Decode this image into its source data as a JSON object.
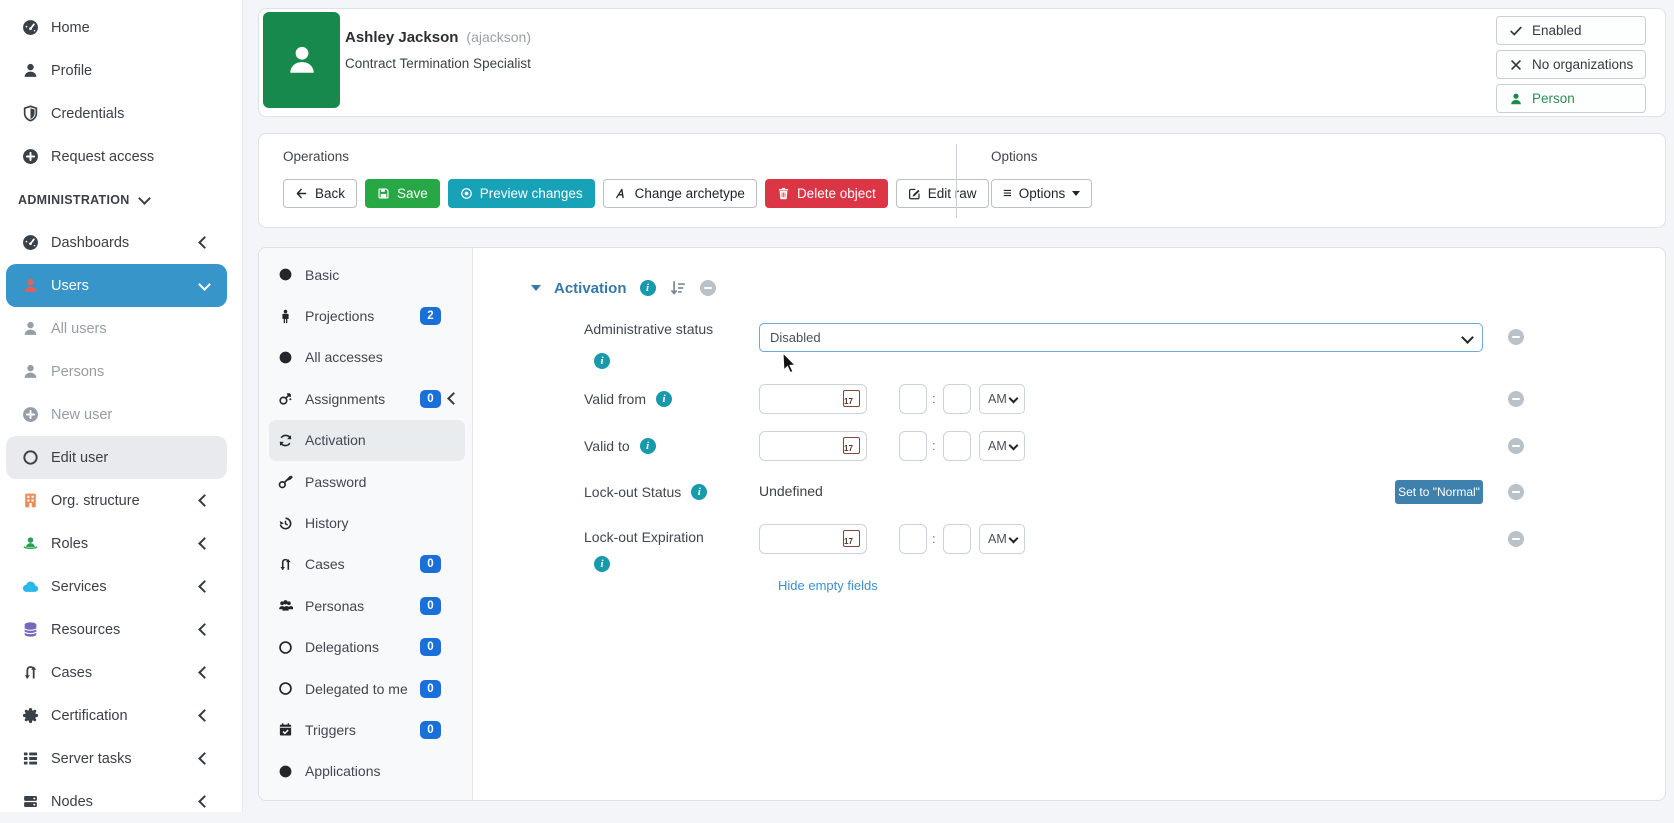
{
  "colors": {
    "sidebar_active_blue": "#3795c9",
    "nav_badge_blue": "#1b6fd8",
    "save_green": "#28a745",
    "preview_teal": "#17a2b8",
    "delete_red": "#dc3545",
    "set_normal_blue": "#3f81ad",
    "section_title_blue": "#3678a8",
    "info_icon_teal": "#1899ac",
    "avatar_green": "#18894d",
    "users_icon_red": "#e0605e"
  },
  "sidebar": {
    "items": [
      {
        "label": "Home",
        "icon": "gauge"
      },
      {
        "label": "Profile",
        "icon": "user"
      },
      {
        "label": "Credentials",
        "icon": "shield"
      },
      {
        "label": "Request access",
        "icon": "plus-circle"
      },
      {
        "type": "section",
        "label": "ADMINISTRATION",
        "chevron": "down"
      },
      {
        "label": "Dashboards",
        "icon": "gauge",
        "chevron": "left"
      },
      {
        "label": "Users",
        "icon": "user",
        "active": true,
        "chevron": "down",
        "icon_color": "#e0605e"
      },
      {
        "label": "All users",
        "icon": "user",
        "muted": true
      },
      {
        "label": "Persons",
        "icon": "user",
        "muted": true
      },
      {
        "label": "New user",
        "icon": "plus-circle",
        "muted": true
      },
      {
        "label": "Edit user",
        "icon": "circle-o",
        "selected": true
      },
      {
        "label": "Org. structure",
        "icon": "building",
        "chevron": "left",
        "icon_color": "#e88f5d"
      },
      {
        "label": "Roles",
        "icon": "role",
        "chevron": "left",
        "icon_color": "#2aa054"
      },
      {
        "label": "Services",
        "icon": "cloud",
        "chevron": "left",
        "icon_color": "#2bb8e8"
      },
      {
        "label": "Resources",
        "icon": "db",
        "chevron": "left",
        "icon_color": "#7468bd"
      },
      {
        "label": "Cases",
        "icon": "case",
        "chevron": "left"
      },
      {
        "label": "Certification",
        "icon": "cert",
        "chevron": "left"
      },
      {
        "label": "Server tasks",
        "icon": "tasks",
        "chevron": "left"
      },
      {
        "label": "Nodes",
        "icon": "server",
        "chevron": "left"
      }
    ]
  },
  "summary": {
    "name": "Ashley Jackson",
    "username": "(ajackson)",
    "subtitle": "Contract Termination Specialist",
    "badges": [
      {
        "label": "Enabled",
        "icon": "check"
      },
      {
        "label": "No organizations",
        "icon": "x"
      },
      {
        "label": "Person",
        "icon": "user",
        "color": "#1f8a4d",
        "text_color": "#2e8b57"
      }
    ]
  },
  "operations": {
    "group_label": "Operations",
    "buttons": [
      {
        "label": "Back",
        "icon": "arrow-left",
        "style": "default"
      },
      {
        "label": "Save",
        "icon": "floppy",
        "style": "success"
      },
      {
        "label": "Preview changes",
        "icon": "preview",
        "style": "info"
      },
      {
        "label": "Change archetype",
        "icon": "archetype",
        "style": "default"
      },
      {
        "label": "Delete object",
        "icon": "trash",
        "style": "danger"
      },
      {
        "label": "Edit raw",
        "icon": "edit",
        "style": "default"
      }
    ],
    "options_label": "Options",
    "options_button_label": "Options"
  },
  "nav": {
    "items": [
      {
        "label": "Basic",
        "icon": "circle"
      },
      {
        "label": "Projections",
        "icon": "male",
        "badge": "2"
      },
      {
        "label": "All accesses",
        "icon": "circle"
      },
      {
        "label": "Assignments",
        "icon": "assignment",
        "badge": "0",
        "chevron": "left"
      },
      {
        "label": "Activation",
        "icon": "recycle",
        "active": true
      },
      {
        "label": "Password",
        "icon": "key"
      },
      {
        "label": "History",
        "icon": "history"
      },
      {
        "label": "Cases",
        "icon": "case",
        "badge": "0"
      },
      {
        "label": "Personas",
        "icon": "users",
        "badge": "0"
      },
      {
        "label": "Delegations",
        "icon": "circle-o",
        "badge": "0"
      },
      {
        "label": "Delegated to me",
        "icon": "circle-o",
        "badge": "0"
      },
      {
        "label": "Triggers",
        "icon": "cal-check",
        "badge": "0"
      },
      {
        "label": "Applications",
        "icon": "circle"
      }
    ]
  },
  "activation": {
    "section_title": "Activation",
    "rows": {
      "administrative_status": {
        "label": "Administrative status",
        "value": "Disabled"
      },
      "valid_from": {
        "label": "Valid from"
      },
      "valid_to": {
        "label": "Valid to"
      },
      "lockout_status": {
        "label": "Lock-out Status",
        "value": "Undefined",
        "action_label": "Set to \"Normal\""
      },
      "lockout_expiration": {
        "label": "Lock-out Expiration"
      }
    },
    "time_meridiem": "AM",
    "calendar_day": "17",
    "hide_empty_fields_label": "Hide empty fields"
  }
}
